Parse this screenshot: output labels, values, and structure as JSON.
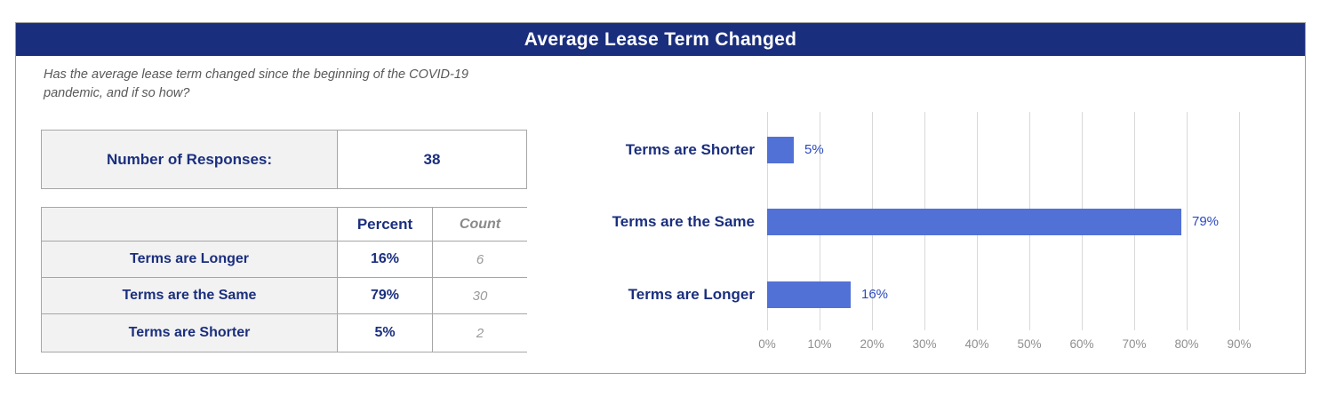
{
  "title": "Average Lease Term Changed",
  "question_lines": [
    "Has the average lease term changed since the beginning of the COVID-19",
    "pandemic, and if so how?"
  ],
  "responses": {
    "label": "Number of Responses:",
    "value": "38"
  },
  "summary_table": {
    "headers": {
      "category": "",
      "percent": "Percent",
      "count": "Count"
    },
    "rows": [
      {
        "label": "Terms are Longer",
        "percent": "16%",
        "count": "6"
      },
      {
        "label": "Terms are the Same",
        "percent": "79%",
        "count": "30"
      },
      {
        "label": "Terms are Shorter",
        "percent": "5%",
        "count": "2"
      }
    ]
  },
  "chart_data": {
    "type": "bar",
    "orientation": "horizontal",
    "categories": [
      "Terms are Shorter",
      "Terms are the Same",
      "Terms are Longer"
    ],
    "values": [
      5,
      79,
      16
    ],
    "value_labels": [
      "5%",
      "79%",
      "16%"
    ],
    "x_ticks": [
      "0%",
      "10%",
      "20%",
      "30%",
      "40%",
      "50%",
      "60%",
      "70%",
      "80%",
      "90%"
    ],
    "xlim": [
      0,
      98
    ],
    "grid": "vertical",
    "legend": "none",
    "title": "",
    "xlabel": "",
    "ylabel": ""
  },
  "colors": {
    "header_bg": "#1a2e7e",
    "bar_fill": "#5271d6",
    "navy_text": "#1b2f7e",
    "value_label": "#2b49c1",
    "gridline": "#d9d9d9",
    "axis_text": "#8f8f8f",
    "question_text": "#595959",
    "table_border": "#a6a6a6",
    "label_cell_bg": "#f2f2f2"
  }
}
